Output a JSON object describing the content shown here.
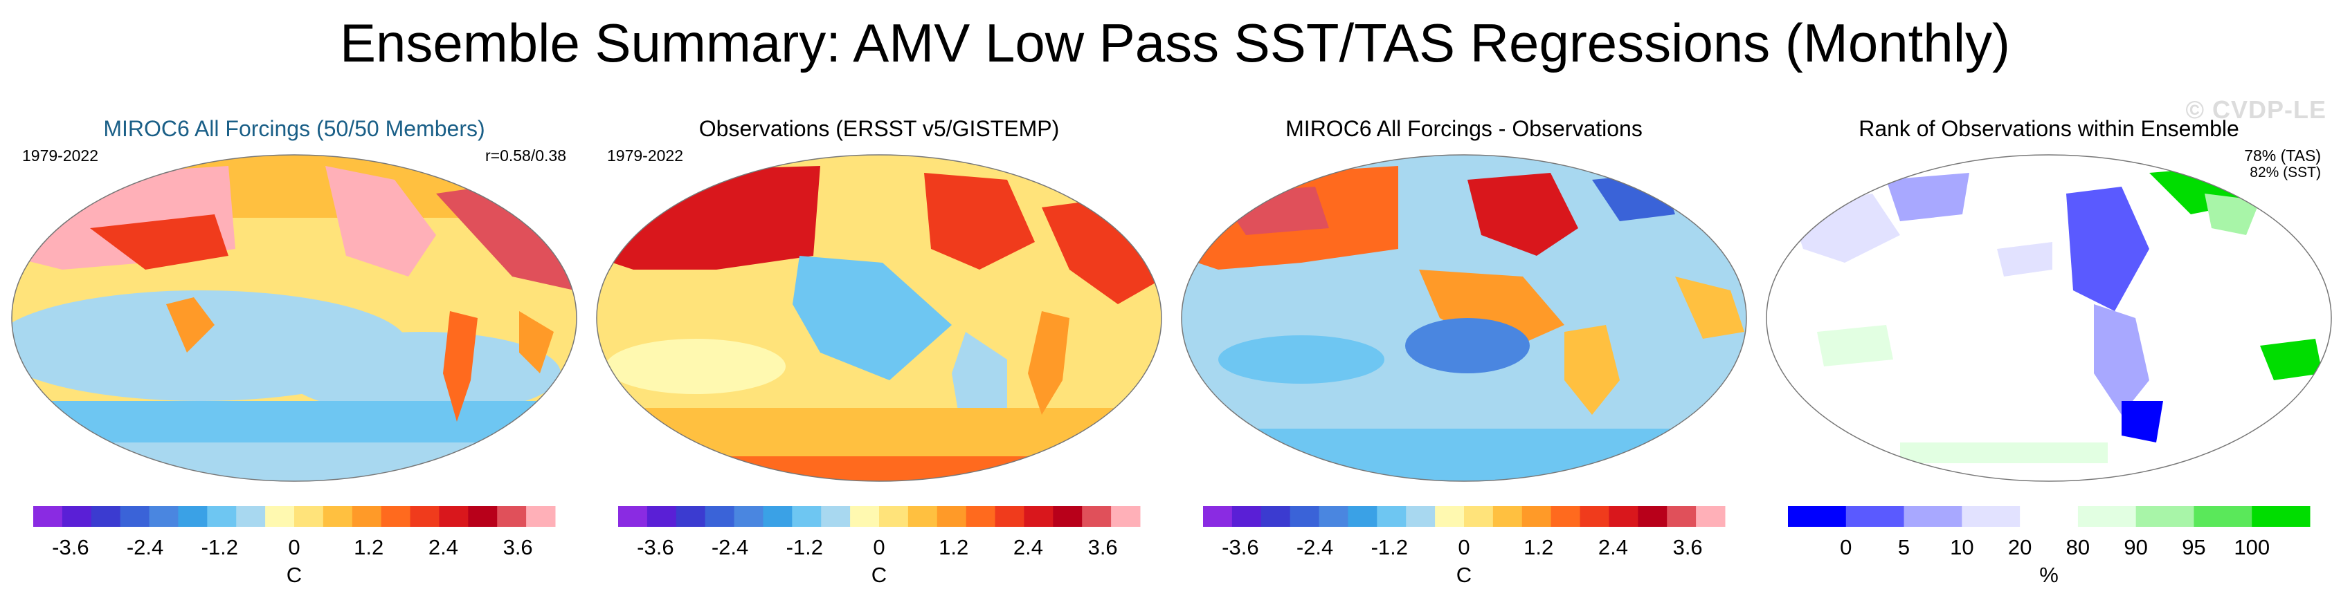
{
  "main_title": "Ensemble Summary: AMV Low Pass SST/TAS Regressions (Monthly)",
  "watermark": "© CVDP-LE",
  "colors": {
    "diverging": [
      "#8a2be2",
      "#5a1fd6",
      "#3b3bd0",
      "#3a63d8",
      "#4a86e0",
      "#3aa1e6",
      "#6ec6f2",
      "#a8d8f0",
      "#fff9b0",
      "#ffe37a",
      "#ffc040",
      "#ff9a28",
      "#ff6a1e",
      "#f03b1c",
      "#d9171c",
      "#b8001a",
      "#e0505a",
      "#ffb0b8"
    ],
    "rank": [
      "#0000ff",
      "#5a5aff",
      "#a8a8ff",
      "#e2e2ff",
      "#ffffff",
      "#e2ffe2",
      "#a8f5a8",
      "#5ae85a",
      "#00dd00"
    ]
  },
  "chart_data": [
    {
      "type": "heatmap",
      "title": "MIROC6 All Forcings (50/50 Members)",
      "period": "1979-2022",
      "stat": "r=0.58/0.38",
      "colorbar": {
        "ticks": [
          "-3.6",
          "-2.4",
          "-1.2",
          "0",
          "1.2",
          "2.4",
          "3.6"
        ],
        "label": "C",
        "range": [
          -4.2,
          4.2
        ]
      }
    },
    {
      "type": "heatmap",
      "title": "Observations (ERSST v5/GISTEMP)",
      "period": "1979-2022",
      "colorbar": {
        "ticks": [
          "-3.6",
          "-2.4",
          "-1.2",
          "0",
          "1.2",
          "2.4",
          "3.6"
        ],
        "label": "C",
        "range": [
          -4.2,
          4.2
        ]
      }
    },
    {
      "type": "heatmap",
      "title": "MIROC6 All Forcings - Observations",
      "colorbar": {
        "ticks": [
          "-3.6",
          "-2.4",
          "-1.2",
          "0",
          "1.2",
          "2.4",
          "3.6"
        ],
        "label": "C",
        "range": [
          -4.2,
          4.2
        ]
      }
    },
    {
      "type": "heatmap",
      "title": "Rank of Observations within Ensemble",
      "stat_tas": "78% (TAS)",
      "stat_sst": "82% (SST)",
      "colorbar": {
        "ticks": [
          "0",
          "5",
          "10",
          "20",
          "80",
          "90",
          "95",
          "100"
        ],
        "label": "%"
      }
    }
  ]
}
